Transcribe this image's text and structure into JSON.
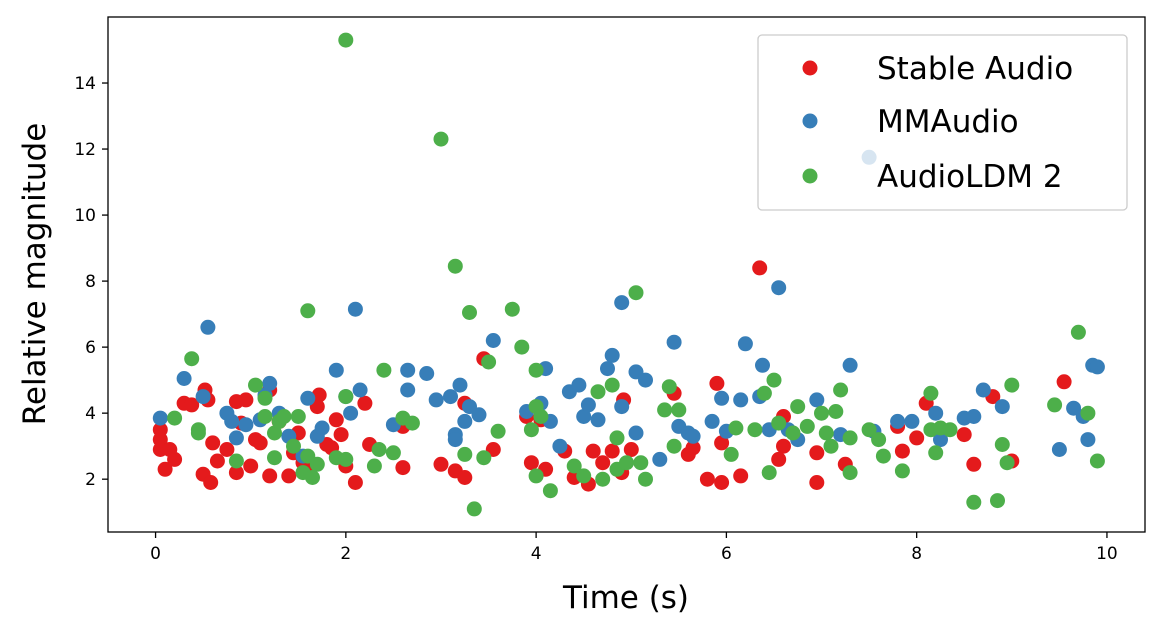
{
  "chart_data": {
    "type": "scatter",
    "title": "",
    "xlabel": "Time (s)",
    "ylabel": "Relative magnitude",
    "xlim": [
      -0.5,
      10.4
    ],
    "ylim": [
      0.4,
      16.0
    ],
    "xticks": [
      0,
      2,
      4,
      6,
      8,
      10
    ],
    "yticks": [
      2,
      4,
      6,
      8,
      10,
      12,
      14
    ],
    "xtick_labels": [
      "0",
      "2",
      "4",
      "6",
      "8",
      "10"
    ],
    "ytick_labels": [
      "2",
      "4",
      "6",
      "8",
      "10",
      "12",
      "14"
    ],
    "grid": false,
    "legend_position": "top-right",
    "series": [
      {
        "name": "Stable Audio",
        "color": "#e41a1c",
        "points": [
          [
            0.05,
            3.5
          ],
          [
            0.05,
            3.2
          ],
          [
            0.05,
            2.9
          ],
          [
            0.1,
            2.3
          ],
          [
            0.15,
            2.9
          ],
          [
            0.2,
            2.6
          ],
          [
            0.3,
            4.3
          ],
          [
            0.38,
            4.25
          ],
          [
            0.5,
            2.15
          ],
          [
            0.52,
            4.7
          ],
          [
            0.55,
            4.4
          ],
          [
            0.58,
            1.9
          ],
          [
            0.6,
            3.1
          ],
          [
            0.65,
            2.55
          ],
          [
            0.75,
            2.9
          ],
          [
            0.85,
            2.2
          ],
          [
            0.85,
            4.35
          ],
          [
            0.9,
            3.7
          ],
          [
            0.95,
            4.4
          ],
          [
            1.0,
            2.4
          ],
          [
            1.05,
            3.2
          ],
          [
            1.1,
            3.1
          ],
          [
            1.2,
            2.1
          ],
          [
            1.2,
            4.7
          ],
          [
            1.3,
            3.75
          ],
          [
            1.4,
            2.1
          ],
          [
            1.45,
            2.8
          ],
          [
            1.5,
            3.4
          ],
          [
            1.55,
            2.5
          ],
          [
            1.6,
            2.3
          ],
          [
            1.7,
            4.2
          ],
          [
            1.72,
            4.55
          ],
          [
            1.8,
            3.05
          ],
          [
            1.85,
            2.95
          ],
          [
            1.9,
            3.8
          ],
          [
            1.95,
            3.35
          ],
          [
            2.0,
            2.4
          ],
          [
            2.1,
            1.9
          ],
          [
            2.2,
            4.3
          ],
          [
            2.25,
            3.05
          ],
          [
            2.6,
            2.35
          ],
          [
            2.6,
            3.6
          ],
          [
            3.0,
            2.45
          ],
          [
            3.15,
            2.25
          ],
          [
            3.25,
            2.05
          ],
          [
            3.25,
            4.3
          ],
          [
            3.45,
            5.65
          ],
          [
            3.55,
            2.9
          ],
          [
            3.9,
            3.9
          ],
          [
            3.95,
            2.5
          ],
          [
            4.05,
            3.8
          ],
          [
            4.1,
            2.3
          ],
          [
            4.3,
            2.85
          ],
          [
            4.4,
            2.05
          ],
          [
            4.55,
            1.85
          ],
          [
            4.6,
            2.85
          ],
          [
            4.7,
            2.5
          ],
          [
            4.8,
            2.85
          ],
          [
            4.9,
            2.2
          ],
          [
            4.92,
            4.4
          ],
          [
            5.0,
            2.9
          ],
          [
            5.45,
            4.6
          ],
          [
            5.6,
            2.75
          ],
          [
            5.65,
            2.95
          ],
          [
            5.8,
            2.0
          ],
          [
            5.9,
            4.9
          ],
          [
            5.95,
            1.9
          ],
          [
            5.95,
            3.1
          ],
          [
            6.15,
            2.1
          ],
          [
            6.35,
            8.4
          ],
          [
            6.55,
            2.6
          ],
          [
            6.6,
            3.0
          ],
          [
            6.6,
            3.9
          ],
          [
            6.95,
            1.9
          ],
          [
            6.95,
            2.8
          ],
          [
            7.25,
            2.45
          ],
          [
            7.8,
            3.6
          ],
          [
            7.85,
            2.85
          ],
          [
            8.0,
            3.25
          ],
          [
            8.1,
            4.3
          ],
          [
            8.5,
            3.35
          ],
          [
            8.6,
            2.45
          ],
          [
            8.8,
            4.5
          ],
          [
            9.0,
            2.55
          ],
          [
            9.55,
            4.95
          ]
        ]
      },
      {
        "name": "MMAudio",
        "color": "#377eb8",
        "points": [
          [
            0.05,
            3.85
          ],
          [
            0.3,
            5.05
          ],
          [
            0.5,
            4.5
          ],
          [
            0.55,
            6.6
          ],
          [
            0.75,
            4.0
          ],
          [
            0.8,
            3.75
          ],
          [
            0.85,
            3.25
          ],
          [
            0.95,
            3.65
          ],
          [
            1.1,
            3.8
          ],
          [
            1.15,
            4.55
          ],
          [
            1.2,
            4.9
          ],
          [
            1.3,
            4.0
          ],
          [
            1.4,
            3.3
          ],
          [
            1.55,
            2.7
          ],
          [
            1.6,
            4.45
          ],
          [
            1.7,
            3.3
          ],
          [
            1.75,
            3.55
          ],
          [
            1.9,
            5.3
          ],
          [
            2.0,
            4.5
          ],
          [
            2.05,
            4.0
          ],
          [
            2.1,
            7.15
          ],
          [
            2.15,
            4.7
          ],
          [
            2.5,
            3.65
          ],
          [
            2.65,
            5.3
          ],
          [
            2.65,
            4.7
          ],
          [
            2.85,
            5.2
          ],
          [
            2.95,
            4.4
          ],
          [
            3.1,
            4.5
          ],
          [
            3.15,
            3.35
          ],
          [
            3.15,
            3.2
          ],
          [
            3.2,
            4.85
          ],
          [
            3.25,
            3.75
          ],
          [
            3.3,
            4.2
          ],
          [
            3.4,
            3.95
          ],
          [
            3.55,
            6.2
          ],
          [
            3.9,
            4.05
          ],
          [
            4.05,
            4.3
          ],
          [
            4.1,
            5.35
          ],
          [
            4.15,
            3.75
          ],
          [
            4.25,
            3.0
          ],
          [
            4.35,
            4.65
          ],
          [
            4.45,
            4.85
          ],
          [
            4.5,
            3.9
          ],
          [
            4.55,
            4.25
          ],
          [
            4.65,
            3.8
          ],
          [
            4.75,
            5.35
          ],
          [
            4.8,
            5.75
          ],
          [
            4.9,
            7.35
          ],
          [
            4.9,
            4.2
          ],
          [
            5.05,
            5.25
          ],
          [
            5.05,
            3.4
          ],
          [
            5.15,
            5.0
          ],
          [
            5.3,
            2.6
          ],
          [
            5.45,
            6.15
          ],
          [
            5.5,
            3.6
          ],
          [
            5.6,
            3.4
          ],
          [
            5.65,
            3.3
          ],
          [
            5.85,
            3.75
          ],
          [
            5.95,
            4.45
          ],
          [
            6.0,
            3.45
          ],
          [
            6.15,
            4.4
          ],
          [
            6.2,
            6.1
          ],
          [
            6.35,
            4.5
          ],
          [
            6.38,
            5.45
          ],
          [
            6.45,
            3.5
          ],
          [
            6.55,
            7.8
          ],
          [
            6.65,
            3.5
          ],
          [
            6.75,
            3.2
          ],
          [
            6.95,
            4.4
          ],
          [
            7.2,
            3.35
          ],
          [
            7.3,
            5.45
          ],
          [
            7.5,
            11.75
          ],
          [
            7.55,
            3.45
          ],
          [
            7.8,
            3.75
          ],
          [
            7.95,
            3.75
          ],
          [
            8.2,
            4.0
          ],
          [
            8.25,
            3.2
          ],
          [
            8.5,
            3.85
          ],
          [
            8.6,
            3.9
          ],
          [
            8.7,
            4.7
          ],
          [
            8.9,
            4.2
          ],
          [
            9.5,
            2.9
          ],
          [
            9.65,
            4.15
          ],
          [
            9.75,
            3.9
          ],
          [
            9.8,
            3.2
          ],
          [
            9.85,
            5.45
          ],
          [
            9.9,
            5.4
          ]
        ]
      },
      {
        "name": "AudioLDM 2",
        "color": "#4daf4a",
        "points": [
          [
            0.2,
            3.85
          ],
          [
            0.38,
            5.65
          ],
          [
            0.45,
            3.5
          ],
          [
            0.45,
            3.4
          ],
          [
            0.85,
            2.55
          ],
          [
            1.05,
            4.85
          ],
          [
            1.15,
            3.9
          ],
          [
            1.15,
            4.45
          ],
          [
            1.25,
            2.65
          ],
          [
            1.25,
            3.4
          ],
          [
            1.3,
            3.75
          ],
          [
            1.35,
            3.9
          ],
          [
            1.45,
            3.0
          ],
          [
            1.5,
            3.9
          ],
          [
            1.55,
            2.2
          ],
          [
            1.6,
            7.1
          ],
          [
            1.6,
            2.7
          ],
          [
            1.65,
            2.05
          ],
          [
            1.7,
            2.45
          ],
          [
            1.9,
            2.65
          ],
          [
            2.0,
            15.3
          ],
          [
            2.0,
            2.6
          ],
          [
            2.0,
            4.5
          ],
          [
            2.3,
            2.4
          ],
          [
            2.35,
            2.9
          ],
          [
            2.4,
            5.3
          ],
          [
            2.5,
            2.8
          ],
          [
            2.6,
            3.85
          ],
          [
            2.7,
            3.7
          ],
          [
            3.0,
            12.3
          ],
          [
            3.15,
            8.45
          ],
          [
            3.25,
            2.75
          ],
          [
            3.3,
            7.05
          ],
          [
            3.35,
            1.1
          ],
          [
            3.45,
            2.65
          ],
          [
            3.5,
            5.55
          ],
          [
            3.6,
            3.45
          ],
          [
            3.75,
            7.15
          ],
          [
            3.85,
            6.0
          ],
          [
            3.95,
            3.5
          ],
          [
            4.0,
            2.1
          ],
          [
            4.0,
            5.3
          ],
          [
            4.0,
            4.2
          ],
          [
            4.05,
            3.9
          ],
          [
            4.15,
            1.65
          ],
          [
            4.4,
            2.4
          ],
          [
            4.5,
            2.1
          ],
          [
            4.65,
            4.65
          ],
          [
            4.7,
            2.0
          ],
          [
            4.8,
            4.85
          ],
          [
            4.85,
            2.3
          ],
          [
            4.85,
            3.25
          ],
          [
            4.95,
            2.5
          ],
          [
            5.05,
            7.65
          ],
          [
            5.1,
            2.5
          ],
          [
            5.15,
            2.0
          ],
          [
            5.35,
            4.1
          ],
          [
            5.4,
            4.8
          ],
          [
            5.45,
            3.0
          ],
          [
            5.5,
            4.1
          ],
          [
            6.05,
            2.75
          ],
          [
            6.1,
            3.55
          ],
          [
            6.3,
            3.5
          ],
          [
            6.4,
            4.6
          ],
          [
            6.45,
            2.2
          ],
          [
            6.5,
            5.0
          ],
          [
            6.55,
            3.7
          ],
          [
            6.7,
            3.4
          ],
          [
            6.75,
            4.2
          ],
          [
            6.85,
            3.6
          ],
          [
            7.0,
            4.0
          ],
          [
            7.05,
            3.4
          ],
          [
            7.1,
            3.0
          ],
          [
            7.15,
            4.05
          ],
          [
            7.2,
            4.7
          ],
          [
            7.3,
            2.2
          ],
          [
            7.3,
            3.25
          ],
          [
            7.5,
            3.5
          ],
          [
            7.6,
            3.2
          ],
          [
            7.65,
            2.7
          ],
          [
            7.85,
            2.25
          ],
          [
            8.15,
            4.6
          ],
          [
            8.15,
            3.5
          ],
          [
            8.2,
            2.8
          ],
          [
            8.25,
            3.55
          ],
          [
            8.35,
            3.5
          ],
          [
            8.6,
            1.3
          ],
          [
            8.85,
            1.35
          ],
          [
            8.9,
            3.05
          ],
          [
            8.95,
            2.5
          ],
          [
            9.0,
            4.85
          ],
          [
            9.45,
            4.25
          ],
          [
            9.7,
            6.45
          ],
          [
            9.8,
            4.0
          ],
          [
            9.9,
            2.55
          ]
        ]
      }
    ]
  }
}
